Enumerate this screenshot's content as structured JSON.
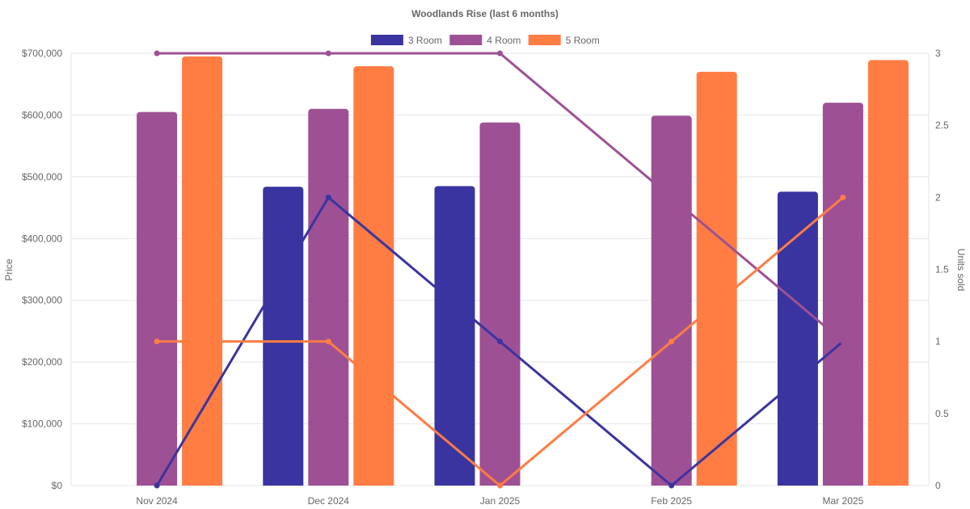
{
  "chart_data": {
    "type": "bar",
    "title": "Woodlands Rise (last 6 months)",
    "categories": [
      "Nov 2024",
      "Dec 2024",
      "Jan 2025",
      "Feb 2025",
      "Mar 2025"
    ],
    "ylabel": "Price",
    "y2label": "Units sold",
    "ylim": [
      0,
      700000
    ],
    "y2lim": [
      0,
      3
    ],
    "yticks": [
      0,
      100000,
      200000,
      300000,
      400000,
      500000,
      600000,
      700000
    ],
    "ytick_labels": [
      "$0",
      "$100,000",
      "$200,000",
      "$300,000",
      "$400,000",
      "$500,000",
      "$600,000",
      "$700,000"
    ],
    "y2ticks": [
      0,
      0.5,
      1,
      1.5,
      2,
      2.5,
      3
    ],
    "y2tick_labels": [
      "0",
      "0.5",
      "1",
      "1.5",
      "2",
      "2.5",
      "3"
    ],
    "legend_position": "top-center",
    "series": [
      {
        "name": "3 Room",
        "color": "#3a34a0",
        "price": [
          null,
          484000,
          485000,
          null,
          476000
        ],
        "units": [
          0,
          2,
          1,
          0,
          1
        ]
      },
      {
        "name": "4 Room",
        "color": "#9e5094",
        "price": [
          605000,
          610000,
          588000,
          599000,
          620000
        ],
        "units": [
          3,
          3,
          3,
          2,
          1
        ]
      },
      {
        "name": "5 Room",
        "color": "#ff7c43",
        "price": [
          695000,
          679000,
          null,
          670000,
          689000
        ],
        "units": [
          1,
          1,
          0,
          1,
          2
        ]
      }
    ]
  }
}
